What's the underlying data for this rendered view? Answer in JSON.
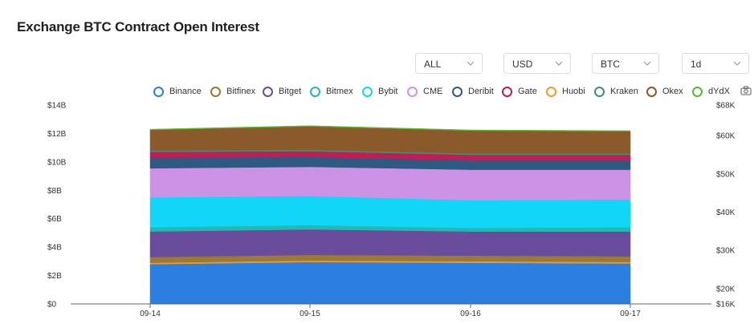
{
  "title": "Exchange BTC Contract Open Interest",
  "selects": [
    {
      "value": "ALL"
    },
    {
      "value": "USD"
    },
    {
      "value": "BTC"
    },
    {
      "value": "1d"
    }
  ],
  "colors": {
    "Binance": "#2a7fe0",
    "Bitfinex": "#9a7a36",
    "Bitget": "#6a4c9c",
    "Bitmex": "#22b9b3",
    "Bybit": "#12d6f7",
    "CME": "#cc92e6",
    "Deribit": "#2e5a82",
    "Gate": "#c01c55",
    "Huobi": "#f39a2f",
    "Kraken": "#3d8e74",
    "Okex": "#8b5a2b",
    "dYdX": "#59b82e"
  },
  "chart_data": {
    "type": "area",
    "stacked": true,
    "title": "Exchange BTC Contract Open Interest",
    "x": [
      "09-14",
      "09-15",
      "09-16",
      "09-17"
    ],
    "y_ticks": [
      "$0",
      "$2B",
      "$4B",
      "$6B",
      "$8B",
      "$10B",
      "$12B",
      "$14B"
    ],
    "ylim": [
      0,
      14
    ],
    "y2_ticks": [
      "$16K",
      "$20K",
      "$30K",
      "$40K",
      "$50K",
      "$60K",
      "$68K"
    ],
    "y2lim": [
      16,
      68
    ],
    "legend_position": "top",
    "series": [
      {
        "name": "Binance",
        "values": [
          2.8,
          2.95,
          2.9,
          2.85
        ]
      },
      {
        "name": "Huobi",
        "values": [
          0.1,
          0.1,
          0.1,
          0.1
        ]
      },
      {
        "name": "Bitfinex",
        "values": [
          0.4,
          0.4,
          0.4,
          0.4
        ]
      },
      {
        "name": "Bitget",
        "values": [
          1.8,
          1.8,
          1.7,
          1.75
        ]
      },
      {
        "name": "Bitmex",
        "values": [
          0.3,
          0.3,
          0.25,
          0.3
        ]
      },
      {
        "name": "Bybit",
        "values": [
          2.1,
          2.05,
          1.95,
          1.95
        ]
      },
      {
        "name": "CME",
        "values": [
          2.05,
          2.05,
          2.15,
          2.1
        ]
      },
      {
        "name": "Deribit",
        "values": [
          0.75,
          0.7,
          0.65,
          0.65
        ]
      },
      {
        "name": "Gate",
        "values": [
          0.4,
          0.4,
          0.4,
          0.4
        ]
      },
      {
        "name": "Kraken",
        "values": [
          0.1,
          0.1,
          0.1,
          0.1
        ]
      },
      {
        "name": "Okex",
        "values": [
          1.45,
          1.65,
          1.6,
          1.55
        ]
      },
      {
        "name": "dYdX",
        "values": [
          0.05,
          0.05,
          0.05,
          0.05
        ]
      }
    ],
    "legend": [
      "Binance",
      "Bitfinex",
      "Bitget",
      "Bitmex",
      "Bybit",
      "CME",
      "Deribit",
      "Gate",
      "Huobi",
      "Kraken",
      "Okex",
      "dYdX"
    ]
  }
}
